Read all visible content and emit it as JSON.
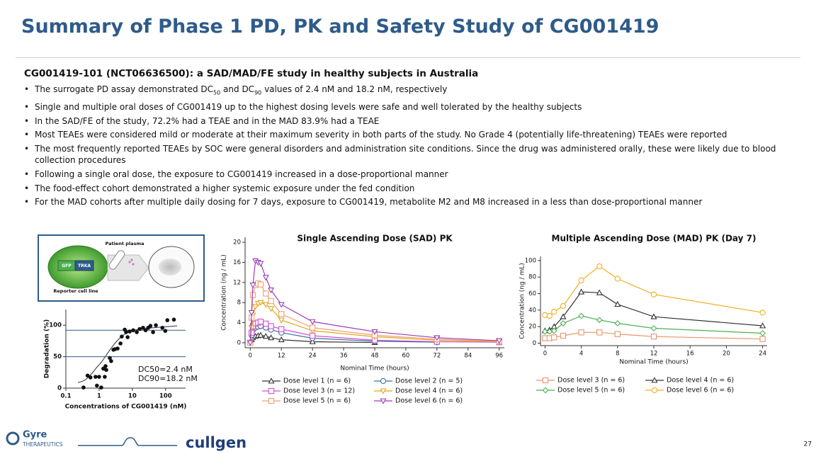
{
  "header": {
    "title": "Summary of Phase 1 PD, PK and Safety Study of CG001419",
    "subtitle": "CG001419-101 (NCT06636500): a SAD/MAD/FE study in healthy subjects in Australia"
  },
  "bullets": [
    {
      "before": "The surrogate PD assay demonstrated DC",
      "sub1": "50",
      "middle": " and DC",
      "sub2": "90",
      "after": " values of 2.4 nM and 18.2 nM, respectively"
    },
    "Single and multiple oral doses of CG001419 up to the highest dosing levels were safe and well tolerated by the healthy subjects",
    "In the SAD/FE of the study, 72.2% had a TEAE and in the MAD 83.9% had a TEAE",
    "Most TEAEs were considered mild or moderate at their maximum severity in both parts of the study. No Grade 4 (potentially life-threatening) TEAEs were reported",
    "The most frequently reported TEAEs by SOC were general disorders and administration site conditions. Since the drug was administered orally, these were likely due to blood collection procedures",
    "Following a single oral dose, the exposure to CG001419 increased in a dose-proportional manner",
    "The food-effect cohort demonstrated a higher systemic exposure under the fed condition",
    "For the MAD cohorts after multiple daily dosing for 7 days, exposure to CG001419, metabolite M2 and M8 increased in a less than dose-proportional manner"
  ],
  "diagram": {
    "plasma": "Patient plasma",
    "gfp": "GFP",
    "trka": "TRKA",
    "cell_line": "Reporter cell line"
  },
  "chart_data": [
    {
      "type": "scatter",
      "xscale": "log",
      "color": "#111111",
      "x": [
        0.34,
        0.45,
        0.55,
        0.78,
        0.86,
        1.0,
        1.16,
        1.34,
        1.48,
        1.56,
        1.64,
        2.1,
        2.3,
        2.7,
        3.0,
        3.6,
        4.4,
        4.8,
        5.9,
        6.5,
        7.2,
        8.3,
        10.6,
        13.6,
        16.6,
        21,
        25,
        30,
        35,
        42,
        51,
        80,
        98,
        113,
        178
      ],
      "values": [
        1,
        20,
        17,
        18,
        4,
        18,
        1,
        31,
        18,
        35,
        29,
        48,
        43,
        61,
        62,
        63,
        71,
        82,
        93,
        89,
        81,
        90,
        92,
        89,
        94,
        96,
        92,
        96,
        99,
        89,
        100,
        96,
        91,
        108,
        109
      ],
      "hlines": [
        92,
        50
      ],
      "hline_color": "#2e5b8a",
      "xlim": [
        0.1,
        400
      ],
      "ylim": [
        0,
        125
      ],
      "xticks": [
        0.1,
        1,
        10,
        100
      ],
      "yticks": [
        0,
        50,
        100
      ],
      "xlabel": "Concentrations of CG001419 (nM)",
      "ylabel": "Degradation (%)",
      "annotations": [
        "DC50=2.4 nM",
        "DC90=18.2 nM"
      ]
    },
    {
      "type": "line",
      "title": "Single Ascending Dose (SAD) PK",
      "xlabel": "Nominal Time (hours)",
      "ylabel": "Concentration (ng / mL)",
      "xlim": [
        -2,
        98
      ],
      "ylim": [
        -1,
        21
      ],
      "xticks": [
        0,
        12,
        24,
        36,
        48,
        60,
        72,
        84,
        96
      ],
      "yticks": [
        0,
        4,
        8,
        12,
        16,
        20
      ],
      "x": [
        0,
        0.5,
        1,
        2,
        3,
        4,
        6,
        8,
        12,
        24,
        48,
        72,
        96
      ],
      "series": [
        {
          "name": "Dose level 1 (n = 6)",
          "color": "#333333",
          "marker": "tri-up",
          "values": [
            0,
            0.6,
            1.0,
            1.3,
            1.4,
            1.5,
            1.3,
            1.0,
            0.6,
            0.2,
            0.05,
            null,
            null
          ]
        },
        {
          "name": "Dose level 2 (n = 5)",
          "color": "#3b6ea5",
          "marker": "circle",
          "values": [
            0,
            1.5,
            2.5,
            3.0,
            3.2,
            3.3,
            3.0,
            2.6,
            2.0,
            0.9,
            0.3,
            0.1,
            null
          ]
        },
        {
          "name": "Dose level 3 (n = 12)",
          "color": "#d04fd0",
          "marker": "square",
          "values": [
            0,
            2.0,
            3.3,
            3.8,
            4.0,
            4.2,
            3.8,
            3.3,
            2.7,
            1.4,
            0.5,
            0.2,
            0.1
          ]
        },
        {
          "name": "Dose level 4 (n = 6)",
          "color": "#e0a818",
          "marker": "tri-down",
          "values": [
            0,
            3.0,
            5.5,
            7.2,
            7.8,
            8.0,
            7.6,
            6.8,
            4.5,
            2.4,
            1.2,
            0.5,
            0.2
          ]
        },
        {
          "name": "Dose level 5 (n = 6)",
          "color": "#f0a070",
          "marker": "square",
          "values": [
            0,
            5.0,
            9.5,
            11.5,
            11.8,
            11.6,
            9.8,
            8.3,
            5.7,
            3.0,
            1.5,
            0.7,
            0.3
          ]
        },
        {
          "name": "Dose level 6 (n = 6)",
          "color": "#9b3fb8",
          "marker": "tri-down",
          "values": [
            0,
            6.0,
            11.5,
            16.3,
            16.0,
            15.8,
            13.0,
            10.5,
            7.6,
            4.2,
            2.2,
            1.0,
            0.4
          ]
        }
      ]
    },
    {
      "type": "line",
      "title": "Multiple Ascending Dose (MAD) PK (Day 7)",
      "xlabel": "Nominal Time (hours)",
      "ylabel": "Concentration (ng / mL)",
      "xlim": [
        -0.5,
        24.5
      ],
      "ylim": [
        -3,
        105
      ],
      "xticks": [
        0,
        4,
        8,
        12,
        16,
        20,
        24
      ],
      "yticks": [
        0,
        20,
        40,
        60,
        80,
        100
      ],
      "x": [
        0,
        0.5,
        1,
        2,
        4,
        6,
        8,
        12,
        24
      ],
      "series": [
        {
          "name": "Dose level 3 (n = 6)",
          "color": "#e8956b",
          "marker": "square",
          "values": [
            6,
            6,
            7,
            9,
            13,
            13,
            11,
            8,
            5
          ]
        },
        {
          "name": "Dose level 4 (n = 6)",
          "color": "#333333",
          "marker": "tri-up",
          "values": [
            15,
            16,
            20,
            32,
            62,
            61,
            47,
            32,
            21
          ]
        },
        {
          "name": "Dose level 5 (n = 6)",
          "color": "#4caf50",
          "marker": "diamond",
          "values": [
            14,
            14,
            15,
            24,
            33,
            28,
            24,
            18,
            12
          ]
        },
        {
          "name": "Dose level 6 (n = 6)",
          "color": "#f0b020",
          "marker": "circle",
          "values": [
            34,
            33,
            38,
            45,
            76,
            93,
            78,
            59,
            37
          ]
        }
      ]
    }
  ],
  "footer": {
    "brand1": "Gyre",
    "brand1_sub": "THERAPEUTICS",
    "brand2": "cullgen",
    "page": "27"
  }
}
